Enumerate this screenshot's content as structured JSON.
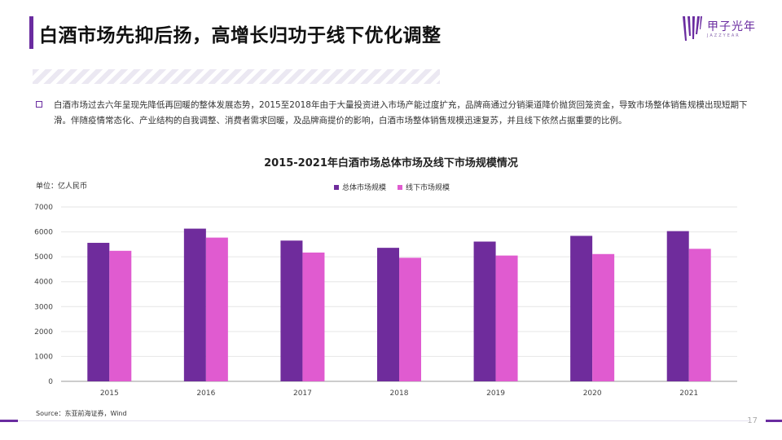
{
  "header": {
    "title": "白酒市场先抑后扬，高增长归功于线下优化调整"
  },
  "logo": {
    "cn_text": "甲子光年",
    "en_text": "JAZZYEAR"
  },
  "summary": {
    "text": "白酒市场过去六年呈现先降低再回暖的整体发展态势，2015至2018年由于大量投资进入市场产能过度扩充，品牌商通过分销渠道降价抛货回笼资金，导致市场整体销售规模出现短期下滑。伴随疫情常态化、产业结构的自我调整、消费者需求回暖，及品牌商提价的影响，白酒市场整体销售规模迅速复苏，并且线下依然占据重要的比例。"
  },
  "colors": {
    "accent": "#6a2ca0",
    "series_total": "#6f2c9c",
    "series_offline": "#e05bd0"
  },
  "chart_data": {
    "type": "bar",
    "title": "2015-2021年白酒市场总体市场及线下市场规模情况",
    "unit_label": "单位：亿人民币",
    "categories": [
      "2015",
      "2016",
      "2017",
      "2018",
      "2019",
      "2020",
      "2021"
    ],
    "series": [
      {
        "name": "总体市场规模",
        "color": "#6f2c9c",
        "values": [
          5560,
          6130,
          5650,
          5360,
          5610,
          5840,
          6030
        ]
      },
      {
        "name": "线下市场规模",
        "color": "#e05bd0",
        "values": [
          5240,
          5770,
          5170,
          4960,
          5050,
          5110,
          5320
        ]
      }
    ],
    "ylim": [
      0,
      7000
    ],
    "yticks": [
      "0",
      "1000",
      "2000",
      "3000",
      "4000",
      "5000",
      "6000",
      "7000"
    ],
    "grid": true,
    "legend_position": "top-center"
  },
  "footer": {
    "source": "Source：东亚前海证券，Wind",
    "page_number": "17"
  }
}
